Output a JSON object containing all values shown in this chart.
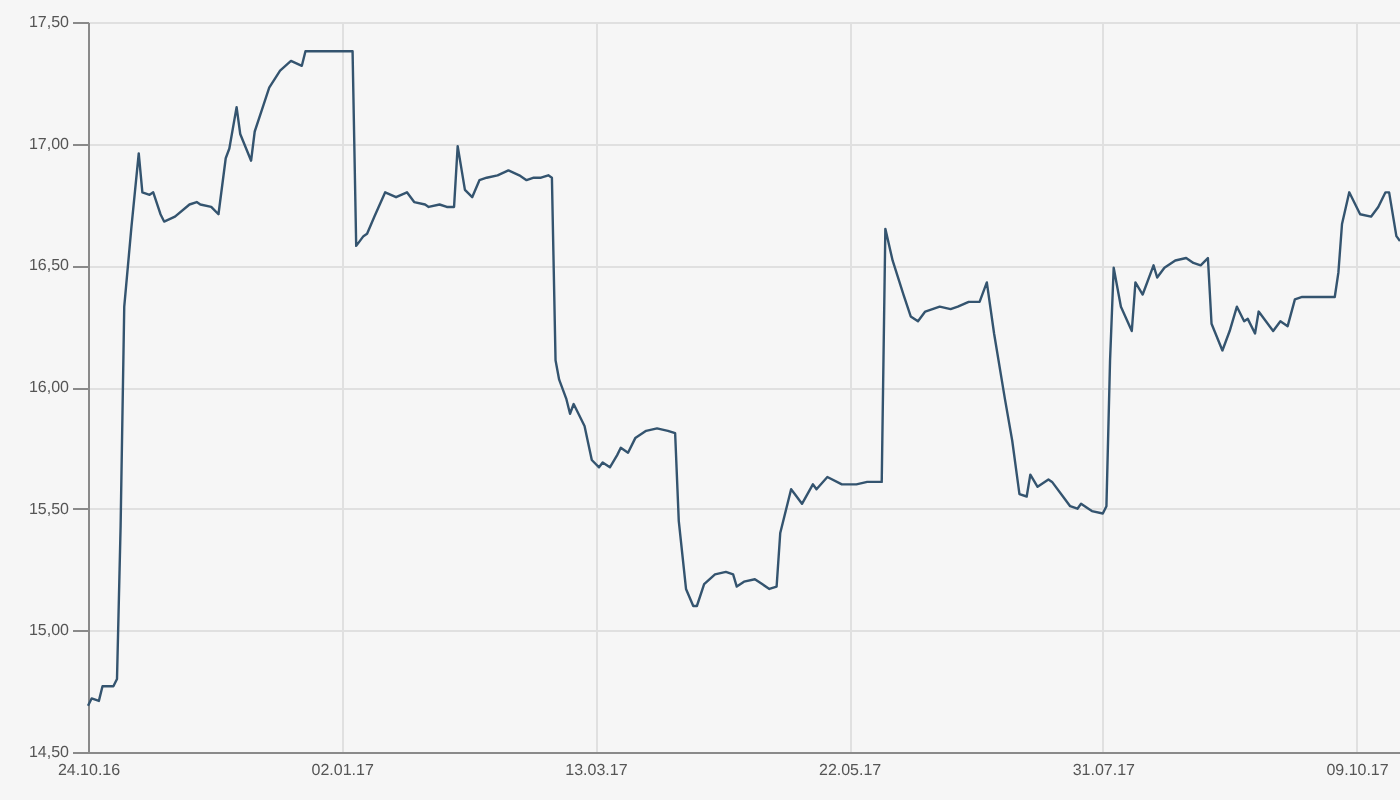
{
  "chart_data": {
    "type": "line",
    "x": [
      "2016-10-24",
      "2016-10-25",
      "2016-10-27",
      "2016-10-28",
      "2016-10-31",
      "2016-11-01",
      "2016-11-02",
      "2016-11-03",
      "2016-11-05",
      "2016-11-07",
      "2016-11-08",
      "2016-11-10",
      "2016-11-11",
      "2016-11-13",
      "2016-11-14",
      "2016-11-17",
      "2016-11-21",
      "2016-11-23",
      "2016-11-24",
      "2016-11-27",
      "2016-11-29",
      "2016-12-01",
      "2016-12-02",
      "2016-12-04",
      "2016-12-05",
      "2016-12-08",
      "2016-12-09",
      "2016-12-11",
      "2016-12-13",
      "2016-12-16",
      "2016-12-19",
      "2016-12-22",
      "2016-12-23",
      "2016-12-31",
      "2017-01-05",
      "2017-01-06",
      "2017-01-08",
      "2017-01-09",
      "2017-01-11",
      "2017-01-14",
      "2017-01-17",
      "2017-01-20",
      "2017-01-22",
      "2017-01-25",
      "2017-01-26",
      "2017-01-29",
      "2017-01-31",
      "2017-02-02",
      "2017-02-03",
      "2017-02-05",
      "2017-02-07",
      "2017-02-09",
      "2017-02-11",
      "2017-02-14",
      "2017-02-17",
      "2017-02-20",
      "2017-02-22",
      "2017-02-24",
      "2017-02-26",
      "2017-02-28",
      "2017-03-01",
      "2017-03-02",
      "2017-03-03",
      "2017-03-05",
      "2017-03-06",
      "2017-03-07",
      "2017-03-10",
      "2017-03-12",
      "2017-03-14",
      "2017-03-15",
      "2017-03-17",
      "2017-03-19",
      "2017-03-20",
      "2017-03-22",
      "2017-03-24",
      "2017-03-27",
      "2017-03-30",
      "2017-04-02",
      "2017-04-04",
      "2017-04-05",
      "2017-04-07",
      "2017-04-09",
      "2017-04-10",
      "2017-04-12",
      "2017-04-15",
      "2017-04-18",
      "2017-04-20",
      "2017-04-21",
      "2017-04-23",
      "2017-04-26",
      "2017-04-28",
      "2017-04-30",
      "2017-05-02",
      "2017-05-03",
      "2017-05-06",
      "2017-05-07",
      "2017-05-09",
      "2017-05-12",
      "2017-05-13",
      "2017-05-16",
      "2017-05-20",
      "2017-05-24",
      "2017-05-27",
      "2017-05-31",
      "2017-06-01",
      "2017-06-03",
      "2017-06-06",
      "2017-06-08",
      "2017-06-10",
      "2017-06-12",
      "2017-06-16",
      "2017-06-19",
      "2017-06-21",
      "2017-06-24",
      "2017-06-27",
      "2017-06-29",
      "2017-07-01",
      "2017-07-04",
      "2017-07-06",
      "2017-07-08",
      "2017-07-10",
      "2017-07-11",
      "2017-07-13",
      "2017-07-16",
      "2017-07-17",
      "2017-07-20",
      "2017-07-22",
      "2017-07-24",
      "2017-07-25",
      "2017-07-28",
      "2017-07-31",
      "2017-08-01",
      "2017-08-02",
      "2017-08-03",
      "2017-08-05",
      "2017-08-08",
      "2017-08-09",
      "2017-08-11",
      "2017-08-14",
      "2017-08-15",
      "2017-08-17",
      "2017-08-20",
      "2017-08-23",
      "2017-08-25",
      "2017-08-27",
      "2017-08-29",
      "2017-08-30",
      "2017-09-02",
      "2017-09-04",
      "2017-09-06",
      "2017-09-08",
      "2017-09-09",
      "2017-09-11",
      "2017-09-12",
      "2017-09-14",
      "2017-09-16",
      "2017-09-18",
      "2017-09-20",
      "2017-09-22",
      "2017-09-24",
      "2017-10-03",
      "2017-10-04",
      "2017-10-05",
      "2017-10-07",
      "2017-10-10",
      "2017-10-13",
      "2017-10-15",
      "2017-10-17",
      "2017-10-18",
      "2017-10-20",
      "2017-10-21"
    ],
    "values": [
      14.69,
      14.72,
      14.71,
      14.77,
      14.77,
      14.8,
      15.43,
      16.33,
      16.66,
      16.96,
      16.8,
      16.79,
      16.8,
      16.71,
      16.68,
      16.7,
      16.75,
      16.76,
      16.75,
      16.74,
      16.71,
      16.94,
      16.98,
      17.15,
      17.04,
      16.93,
      17.05,
      17.14,
      17.23,
      17.3,
      17.34,
      17.32,
      17.38,
      17.38,
      17.38,
      16.58,
      16.62,
      16.63,
      16.7,
      16.8,
      16.78,
      16.8,
      16.76,
      16.75,
      16.74,
      16.75,
      16.74,
      16.74,
      16.99,
      16.81,
      16.78,
      16.85,
      16.86,
      16.87,
      16.89,
      16.87,
      16.85,
      16.86,
      16.86,
      16.87,
      16.86,
      16.11,
      16.03,
      15.95,
      15.89,
      15.93,
      15.84,
      15.7,
      15.67,
      15.69,
      15.67,
      15.72,
      15.75,
      15.73,
      15.79,
      15.82,
      15.83,
      15.82,
      15.81,
      15.45,
      15.17,
      15.1,
      15.1,
      15.19,
      15.23,
      15.24,
      15.23,
      15.18,
      15.2,
      15.21,
      15.19,
      15.17,
      15.18,
      15.4,
      15.58,
      15.56,
      15.52,
      15.6,
      15.58,
      15.63,
      15.6,
      15.6,
      15.61,
      15.61,
      16.65,
      16.52,
      16.38,
      16.29,
      16.27,
      16.31,
      16.33,
      16.32,
      16.33,
      16.35,
      16.35,
      16.43,
      16.22,
      15.95,
      15.78,
      15.56,
      15.55,
      15.64,
      15.59,
      15.62,
      15.61,
      15.55,
      15.51,
      15.5,
      15.52,
      15.49,
      15.48,
      15.51,
      16.11,
      16.49,
      16.33,
      16.23,
      16.43,
      16.38,
      16.5,
      16.45,
      16.49,
      16.52,
      16.53,
      16.51,
      16.5,
      16.53,
      16.26,
      16.15,
      16.23,
      16.33,
      16.27,
      16.28,
      16.22,
      16.31,
      16.27,
      16.23,
      16.27,
      16.25,
      16.36,
      16.37,
      16.37,
      16.47,
      16.67,
      16.8,
      16.71,
      16.7,
      16.74,
      16.8,
      16.8,
      16.62,
      16.6
    ],
    "color": "#34546f",
    "xlim": [
      "2016-10-24",
      "2017-10-21"
    ],
    "xticks": [
      {
        "value": "2016-10-24",
        "label": "24.10.16"
      },
      {
        "value": "2017-01-02",
        "label": "02.01.17"
      },
      {
        "value": "2017-03-13",
        "label": "13.03.17"
      },
      {
        "value": "2017-05-22",
        "label": "22.05.17"
      },
      {
        "value": "2017-07-31",
        "label": "31.07.17"
      },
      {
        "value": "2017-10-09",
        "label": "09.10.17"
      }
    ],
    "ylim": [
      14.5,
      17.5
    ],
    "yticks": [
      {
        "value": 14.5,
        "label": "14,50"
      },
      {
        "value": 15,
        "label": "15,00"
      },
      {
        "value": 15.5,
        "label": "15,50"
      },
      {
        "value": 16,
        "label": "16,00"
      },
      {
        "value": 16.5,
        "label": "16,50"
      },
      {
        "value": 17,
        "label": "17,00"
      },
      {
        "value": 17.5,
        "label": "17,50"
      }
    ],
    "grid": true
  }
}
